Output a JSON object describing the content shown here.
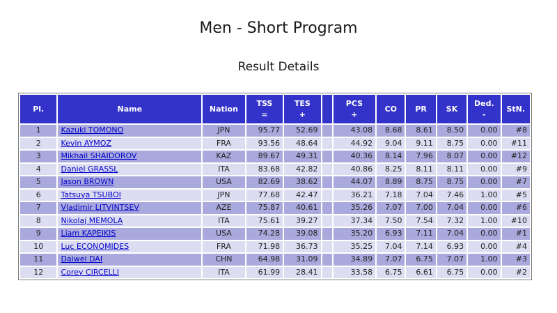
{
  "title": "Men - Short Program",
  "subtitle": "Result Details",
  "headers": {
    "pl": "Pl.",
    "name": "Name",
    "nation": "Nation",
    "tss_1": "TSS",
    "tss_2": "=",
    "tes_1": "TES",
    "tes_2": "+",
    "pcs_1": "PCS",
    "pcs_2": "+",
    "co": "CO",
    "pr": "PR",
    "sk": "SK",
    "ded_1": "Ded.",
    "ded_2": "-",
    "stn": "StN."
  },
  "rows": [
    {
      "pl": "1",
      "name": "Kazuki TOMONO",
      "nation": "JPN",
      "tss": "95.77",
      "tes": "52.69",
      "pcs": "43.08",
      "co": "8.68",
      "pr": "8.61",
      "sk": "8.50",
      "ded": "0.00",
      "stn": "#8"
    },
    {
      "pl": "2",
      "name": "Kevin AYMOZ",
      "nation": "FRA",
      "tss": "93.56",
      "tes": "48.64",
      "pcs": "44.92",
      "co": "9.04",
      "pr": "9.11",
      "sk": "8.75",
      "ded": "0.00",
      "stn": "#11"
    },
    {
      "pl": "3",
      "name": "Mikhail SHAIDOROV",
      "nation": "KAZ",
      "tss": "89.67",
      "tes": "49.31",
      "pcs": "40.36",
      "co": "8.14",
      "pr": "7.96",
      "sk": "8.07",
      "ded": "0.00",
      "stn": "#12"
    },
    {
      "pl": "4",
      "name": "Daniel GRASSL",
      "nation": "ITA",
      "tss": "83.68",
      "tes": "42.82",
      "pcs": "40.86",
      "co": "8.25",
      "pr": "8.11",
      "sk": "8.11",
      "ded": "0.00",
      "stn": "#9"
    },
    {
      "pl": "5",
      "name": "Jason BROWN",
      "nation": "USA",
      "tss": "82.69",
      "tes": "38.62",
      "pcs": "44.07",
      "co": "8.89",
      "pr": "8.75",
      "sk": "8.75",
      "ded": "0.00",
      "stn": "#7"
    },
    {
      "pl": "6",
      "name": "Tatsuya TSUBOI",
      "nation": "JPN",
      "tss": "77.68",
      "tes": "42.47",
      "pcs": "36.21",
      "co": "7.18",
      "pr": "7.04",
      "sk": "7.46",
      "ded": "1.00",
      "stn": "#5"
    },
    {
      "pl": "7",
      "name": "Vladimir LITVINTSEV",
      "nation": "AZE",
      "tss": "75.87",
      "tes": "40.61",
      "pcs": "35.26",
      "co": "7.07",
      "pr": "7.00",
      "sk": "7.04",
      "ded": "0.00",
      "stn": "#6"
    },
    {
      "pl": "8",
      "name": "Nikolaj MEMOLA",
      "nation": "ITA",
      "tss": "75.61",
      "tes": "39.27",
      "pcs": "37.34",
      "co": "7.50",
      "pr": "7.54",
      "sk": "7.32",
      "ded": "1.00",
      "stn": "#10"
    },
    {
      "pl": "9",
      "name": "Liam KAPEIKIS",
      "nation": "USA",
      "tss": "74.28",
      "tes": "39.08",
      "pcs": "35.20",
      "co": "6.93",
      "pr": "7.11",
      "sk": "7.04",
      "ded": "0.00",
      "stn": "#1"
    },
    {
      "pl": "10",
      "name": "Luc ECONOMIDES",
      "nation": "FRA",
      "tss": "71.98",
      "tes": "36.73",
      "pcs": "35.25",
      "co": "7.04",
      "pr": "7.14",
      "sk": "6.93",
      "ded": "0.00",
      "stn": "#4"
    },
    {
      "pl": "11",
      "name": "Daiwei DAI",
      "nation": "CHN",
      "tss": "64.98",
      "tes": "31.09",
      "pcs": "34.89",
      "co": "7.07",
      "pr": "6.75",
      "sk": "7.07",
      "ded": "1.00",
      "stn": "#3"
    },
    {
      "pl": "12",
      "name": "Corey CIRCELLI",
      "nation": "ITA",
      "tss": "61.99",
      "tes": "28.41",
      "pcs": "33.58",
      "co": "6.75",
      "pr": "6.61",
      "sk": "6.75",
      "ded": "0.00",
      "stn": "#2"
    }
  ]
}
